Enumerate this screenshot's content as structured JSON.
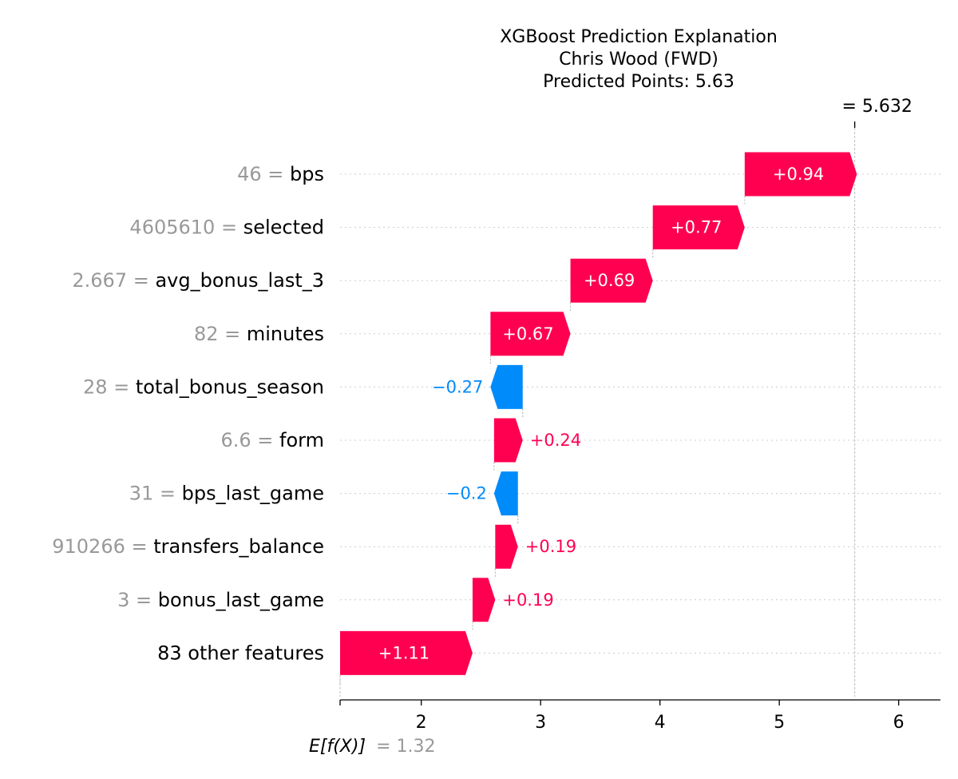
{
  "colors": {
    "positive": "#ff0051",
    "negative": "#008bfb",
    "grey_text": "#999999",
    "grid": "#cccccc"
  },
  "chart_data": {
    "type": "waterfall",
    "title": [
      "XGBoost Prediction Explanation",
      "Chris Wood (FWD)",
      "Predicted Points: 5.63"
    ],
    "base_value": 1.32,
    "base_label": "= 1.32",
    "base_symbol": "E[f(X)]",
    "prediction": 5.632,
    "prediction_label": "= 5.632",
    "xlim": [
      1.32,
      6.35
    ],
    "xticks": [
      2,
      3,
      4,
      5,
      6
    ],
    "features": [
      {
        "value": "46",
        "name": "bps",
        "shap": 0.94,
        "label": "+0.94"
      },
      {
        "value": "4605610",
        "name": "selected",
        "shap": 0.77,
        "label": "+0.77"
      },
      {
        "value": "2.667",
        "name": "avg_bonus_last_3",
        "shap": 0.69,
        "label": "+0.69"
      },
      {
        "value": "82",
        "name": "minutes",
        "shap": 0.67,
        "label": "+0.67"
      },
      {
        "value": "28",
        "name": "total_bonus_season",
        "shap": -0.27,
        "label": "−0.27"
      },
      {
        "value": "6.6",
        "name": "form",
        "shap": 0.24,
        "label": "+0.24"
      },
      {
        "value": "31",
        "name": "bps_last_game",
        "shap": -0.2,
        "label": "−0.2"
      },
      {
        "value": "910266",
        "name": "transfers_balance",
        "shap": 0.19,
        "label": "+0.19"
      },
      {
        "value": "3",
        "name": "bonus_last_game",
        "shap": 0.19,
        "label": "+0.19"
      },
      {
        "value": "",
        "name": "83 other features",
        "shap": 1.11,
        "label": "+1.11"
      }
    ]
  }
}
